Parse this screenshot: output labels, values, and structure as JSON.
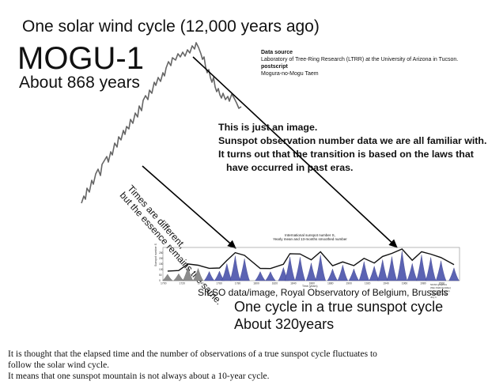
{
  "header": {
    "title": "One solar wind cycle (12,000 years ago)",
    "name": "MOGU-1",
    "period": "About 868 years"
  },
  "source": {
    "label": "Data source",
    "line1": "Laboratory of Tree-Ring Research (LTRR) at the University of Arizona in Tucson.",
    "label2": "postscript",
    "line2": "Mogura-no-Mogu Taem"
  },
  "note": {
    "line1": "This is just an image.",
    "line2": "Sunspot observation number data we are all familiar with.",
    "line3": "It turns out that the transition is based on the laws that",
    "line4": "have occurred in past eras."
  },
  "rotated": {
    "line1": "Times are different,",
    "line2": "but the essence remains the same."
  },
  "sunspot_chart": {
    "title1": "International sunspot number S,",
    "title2": "Yearly mean and 13-months smoothed number",
    "ylabel": "Sunspot number S",
    "xlabel": "Time (years)",
    "footer": "SILSO graphics (http://sidc.be/silso) Royal Observatory of Belgium 2019 July 1",
    "credit": "SILSO data/image, Royal Observatory of Belgium, Brussels"
  },
  "cycle": {
    "line1": "One cycle in a true sunspot cycle",
    "line2": "About 320years"
  },
  "bottom": {
    "line1": "It is thought that the elapsed time and the number of observations of a true sunspot cycle fluctuates to",
    "line2": "follow the solar wind cycle.",
    "line3": "It means that one sunspot mountain is not always about a 10-year cycle."
  },
  "chart_data": {
    "type": "area",
    "x_ticks": [
      "1700",
      "1720",
      "1740",
      "1760",
      "1780",
      "1800",
      "1820",
      "1840",
      "1860",
      "1880",
      "1900",
      "1920",
      "1940",
      "1960",
      "1980",
      "2000"
    ],
    "y_ticks": [
      "0",
      "50",
      "100",
      "150",
      "200",
      "250"
    ],
    "ylim": [
      0,
      250
    ],
    "cycle_peaks": [
      {
        "x": 1705,
        "y": 58
      },
      {
        "x": 1717,
        "y": 63
      },
      {
        "x": 1727,
        "y": 122
      },
      {
        "x": 1738,
        "y": 111
      },
      {
        "x": 1750,
        "y": 83
      },
      {
        "x": 1761,
        "y": 86
      },
      {
        "x": 1769,
        "y": 154
      },
      {
        "x": 1778,
        "y": 224
      },
      {
        "x": 1788,
        "y": 200
      },
      {
        "x": 1805,
        "y": 82
      },
      {
        "x": 1816,
        "y": 81
      },
      {
        "x": 1830,
        "y": 119
      },
      {
        "x": 1837,
        "y": 215
      },
      {
        "x": 1848,
        "y": 212
      },
      {
        "x": 1860,
        "y": 160
      },
      {
        "x": 1870,
        "y": 232
      },
      {
        "x": 1883,
        "y": 106
      },
      {
        "x": 1894,
        "y": 141
      },
      {
        "x": 1906,
        "y": 107
      },
      {
        "x": 1917,
        "y": 173
      },
      {
        "x": 1928,
        "y": 131
      },
      {
        "x": 1937,
        "y": 190
      },
      {
        "x": 1947,
        "y": 218
      },
      {
        "x": 1958,
        "y": 269
      },
      {
        "x": 1969,
        "y": 156
      },
      {
        "x": 1979,
        "y": 233
      },
      {
        "x": 1989,
        "y": 211
      },
      {
        "x": 2000,
        "y": 180
      },
      {
        "x": 2014,
        "y": 116
      }
    ]
  }
}
